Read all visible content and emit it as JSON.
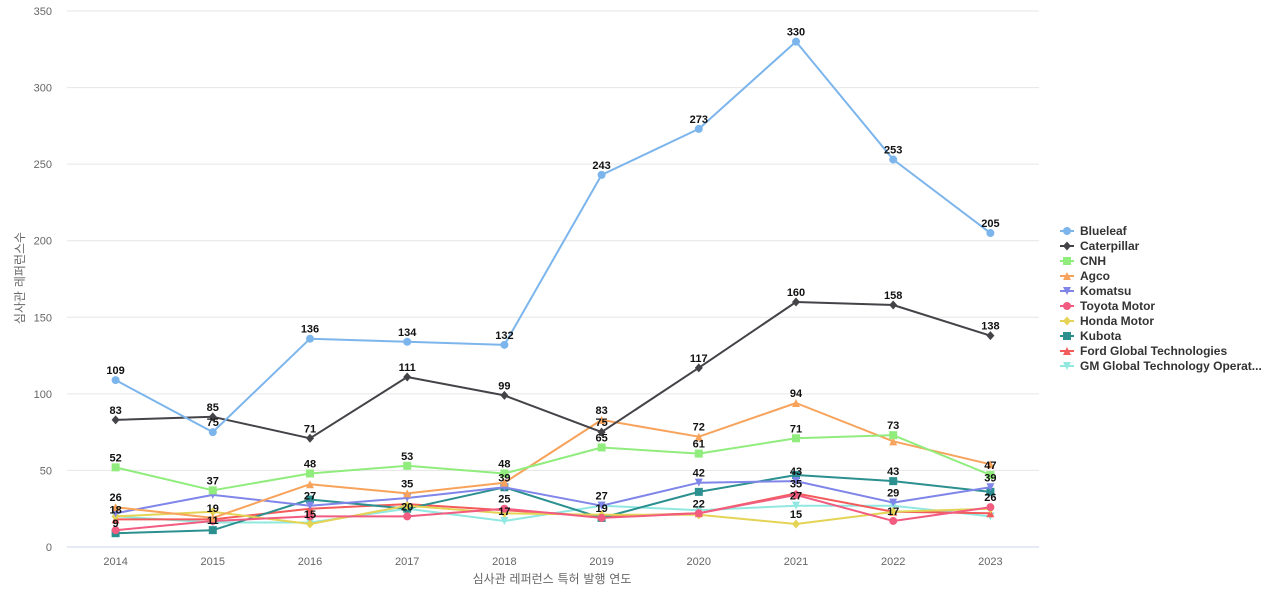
{
  "chart_data": {
    "type": "line",
    "xlabel": "심사관 레퍼런스 특허 발행 연도",
    "ylabel": "심사관 레퍼런스수",
    "ylim": [
      0,
      350
    ],
    "yticks": [
      0,
      50,
      100,
      150,
      200,
      250,
      300,
      350
    ],
    "grid": true,
    "legend_position": "right",
    "x": [
      "2014",
      "2015",
      "2016",
      "2017",
      "2018",
      "2019",
      "2020",
      "2021",
      "2022",
      "2023"
    ],
    "series": [
      {
        "name": "Blueleaf",
        "color": "#7cb5ec",
        "marker": "circle",
        "show_labels": true,
        "values": [
          109,
          75,
          136,
          134,
          132,
          243,
          273,
          330,
          253,
          205
        ]
      },
      {
        "name": "Caterpillar",
        "color": "#434348",
        "marker": "diamond",
        "show_labels": true,
        "values": [
          83,
          85,
          71,
          111,
          99,
          75,
          117,
          160,
          158,
          138
        ]
      },
      {
        "name": "CNH",
        "color": "#90ed7d",
        "marker": "square",
        "show_labels": true,
        "values": [
          52,
          37,
          48,
          53,
          48,
          65,
          61,
          71,
          73,
          47
        ]
      },
      {
        "name": "Agco",
        "color": "#f7a35c",
        "marker": "triangle",
        "show_labels": true,
        "values": [
          26,
          19,
          41,
          35,
          42,
          83,
          72,
          94,
          69,
          54
        ]
      },
      {
        "name": "Komatsu",
        "color": "#8085e9",
        "marker": "triangle-down",
        "show_labels": false,
        "values": [
          22,
          34,
          27,
          32,
          39,
          27,
          42,
          43,
          29,
          39
        ]
      },
      {
        "name": "Toyota Motor",
        "color": "#f15c80",
        "marker": "circle",
        "show_labels": false,
        "values": [
          11,
          17,
          20,
          20,
          25,
          19,
          22,
          34,
          17,
          26
        ]
      },
      {
        "name": "Honda Motor",
        "color": "#e4d354",
        "marker": "diamond",
        "show_labels": false,
        "values": [
          20,
          23,
          15,
          27,
          22,
          21,
          21,
          15,
          23,
          25
        ]
      },
      {
        "name": "Kubota",
        "color": "#2b908f",
        "marker": "square",
        "show_labels": true,
        "values": [
          9,
          11,
          31,
          25,
          39,
          19,
          36,
          47,
          43,
          36
        ]
      },
      {
        "name": "Ford Global Technologies",
        "color": "#f45b5b",
        "marker": "triangle",
        "show_labels": true,
        "values": [
          18,
          18,
          25,
          28,
          24,
          20,
          22,
          35,
          23,
          22
        ]
      },
      {
        "name": "GM Global Technology Operat...",
        "color": "#91e8e1",
        "marker": "triangle-down",
        "show_labels": true,
        "values": [
          20,
          16,
          16,
          25,
          17,
          27,
          24,
          27,
          27,
          20
        ]
      }
    ],
    "labels": [
      {
        "x": "2014",
        "y": 109,
        "text": "109"
      },
      {
        "x": "2015",
        "y": 85,
        "text": "85"
      },
      {
        "x": "2016",
        "y": 136,
        "text": "136"
      },
      {
        "x": "2017",
        "y": 134,
        "text": "134"
      },
      {
        "x": "2018",
        "y": 132,
        "text": "132"
      },
      {
        "x": "2019",
        "y": 243,
        "text": "243"
      },
      {
        "x": "2020",
        "y": 273,
        "text": "273"
      },
      {
        "x": "2021",
        "y": 330,
        "text": "330"
      },
      {
        "x": "2022",
        "y": 253,
        "text": "253"
      },
      {
        "x": "2023",
        "y": 205,
        "text": "205"
      },
      {
        "x": "2014",
        "y": 83,
        "text": "83"
      },
      {
        "x": "2015",
        "y": 75,
        "text": "75"
      },
      {
        "x": "2016",
        "y": 71,
        "text": "71"
      },
      {
        "x": "2017",
        "y": 111,
        "text": "111"
      },
      {
        "x": "2018",
        "y": 99,
        "text": "99"
      },
      {
        "x": "2019",
        "y": 83,
        "text": "83"
      },
      {
        "x": "2019",
        "y": 75,
        "text": "75"
      },
      {
        "x": "2020",
        "y": 117,
        "text": "117"
      },
      {
        "x": "2021",
        "y": 160,
        "text": "160"
      },
      {
        "x": "2022",
        "y": 158,
        "text": "158"
      },
      {
        "x": "2023",
        "y": 138,
        "text": "138"
      },
      {
        "x": "2014",
        "y": 52,
        "text": "52"
      },
      {
        "x": "2015",
        "y": 37,
        "text": "37"
      },
      {
        "x": "2016",
        "y": 48,
        "text": "48"
      },
      {
        "x": "2017",
        "y": 53,
        "text": "53"
      },
      {
        "x": "2018",
        "y": 48,
        "text": "48"
      },
      {
        "x": "2019",
        "y": 65,
        "text": "65"
      },
      {
        "x": "2020",
        "y": 72,
        "text": "72"
      },
      {
        "x": "2020",
        "y": 61,
        "text": "61"
      },
      {
        "x": "2021",
        "y": 94,
        "text": "94"
      },
      {
        "x": "2021",
        "y": 71,
        "text": "71"
      },
      {
        "x": "2022",
        "y": 73,
        "text": "73"
      },
      {
        "x": "2023",
        "y": 47,
        "text": "47"
      },
      {
        "x": "2014",
        "y": 26,
        "text": "26"
      },
      {
        "x": "2014",
        "y": 18,
        "text": "18"
      },
      {
        "x": "2014",
        "y": 9,
        "text": "9"
      },
      {
        "x": "2015",
        "y": 19,
        "text": "19"
      },
      {
        "x": "2015",
        "y": 11,
        "text": "11"
      },
      {
        "x": "2016",
        "y": 27,
        "text": "27"
      },
      {
        "x": "2016",
        "y": 15,
        "text": "15"
      },
      {
        "x": "2017",
        "y": 35,
        "text": "35"
      },
      {
        "x": "2017",
        "y": 20,
        "text": "20"
      },
      {
        "x": "2018",
        "y": 39,
        "text": "39"
      },
      {
        "x": "2018",
        "y": 25,
        "text": "25"
      },
      {
        "x": "2018",
        "y": 17,
        "text": "17"
      },
      {
        "x": "2019",
        "y": 27,
        "text": "27"
      },
      {
        "x": "2019",
        "y": 19,
        "text": "19"
      },
      {
        "x": "2020",
        "y": 42,
        "text": "42"
      },
      {
        "x": "2020",
        "y": 22,
        "text": "22"
      },
      {
        "x": "2021",
        "y": 43,
        "text": "43"
      },
      {
        "x": "2021",
        "y": 35,
        "text": "35"
      },
      {
        "x": "2021",
        "y": 27,
        "text": "27"
      },
      {
        "x": "2021",
        "y": 15,
        "text": "15"
      },
      {
        "x": "2022",
        "y": 43,
        "text": "43"
      },
      {
        "x": "2022",
        "y": 29,
        "text": "29"
      },
      {
        "x": "2022",
        "y": 17,
        "text": "17"
      },
      {
        "x": "2023",
        "y": 39,
        "text": "39"
      },
      {
        "x": "2023",
        "y": 26,
        "text": "26"
      }
    ]
  }
}
